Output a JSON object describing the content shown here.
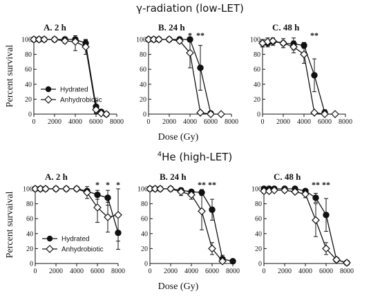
{
  "figure": {
    "sections": [
      {
        "title_main": "γ-radiation (low-LET)",
        "title_sup": "",
        "ylabel": "Percent survival",
        "xlabel": "Dose (Gy)"
      },
      {
        "title_main": "He (high-LET)",
        "title_sup": "4",
        "ylabel": "Percent survaival",
        "xlabel": "Dose (Gy)"
      }
    ],
    "legend": {
      "hydrated": "Hydrated",
      "anhydrobiotic": "Anhydrobiotic"
    }
  },
  "chart_data": [
    {
      "type": "line",
      "title": "A. 2 h",
      "section": "γ-radiation (low-LET)",
      "xlim": [
        0,
        8000
      ],
      "ylim": [
        0,
        100
      ],
      "xticks": [
        "0",
        "2000",
        "4000",
        "6000",
        "8000"
      ],
      "yticks": [
        "0",
        "20",
        "40",
        "60",
        "80",
        "100"
      ],
      "grid": false,
      "legend_position": "bottom-left",
      "significance": [],
      "series": [
        {
          "name": "Hydrated",
          "marker": "filled-circle",
          "x": [
            0,
            500,
            1000,
            2000,
            3000,
            4000,
            5000,
            6000,
            6500,
            7000
          ],
          "y": [
            100,
            100,
            100,
            100,
            100,
            100,
            95,
            10,
            3,
            0
          ],
          "err": [
            0,
            0,
            0,
            0,
            2,
            3,
            4,
            8,
            3,
            0
          ]
        },
        {
          "name": "Anhydrobiotic",
          "marker": "open-diamond",
          "x": [
            0,
            500,
            1000,
            2000,
            3000,
            4000,
            5000,
            6000,
            6500,
            7000
          ],
          "y": [
            100,
            100,
            100,
            100,
            98,
            97,
            90,
            6,
            1,
            0
          ],
          "err": [
            0,
            0,
            0,
            0,
            3,
            12,
            10,
            5,
            2,
            0
          ]
        }
      ]
    },
    {
      "type": "line",
      "title": "B. 24 h",
      "section": "γ-radiation (low-LET)",
      "xlim": [
        0,
        8000
      ],
      "ylim": [
        0,
        100
      ],
      "xticks": [
        "0",
        "2000",
        "4000",
        "6000",
        "8000"
      ],
      "yticks": [
        "0",
        "20",
        "40",
        "60",
        "80",
        "100"
      ],
      "grid": false,
      "significance": [
        {
          "x": 4000,
          "label": "*"
        },
        {
          "x": 5000,
          "label": "**"
        }
      ],
      "series": [
        {
          "name": "Hydrated",
          "marker": "filled-circle",
          "x": [
            0,
            500,
            1000,
            2000,
            3000,
            4000,
            5000,
            6000
          ],
          "y": [
            100,
            100,
            100,
            100,
            100,
            100,
            62,
            1
          ],
          "err": [
            0,
            0,
            0,
            0,
            0,
            3,
            30,
            2
          ]
        },
        {
          "name": "Anhydrobiotic",
          "marker": "open-diamond",
          "x": [
            0,
            500,
            1000,
            2000,
            3000,
            4000,
            5000,
            6000,
            7000
          ],
          "y": [
            100,
            100,
            100,
            100,
            98,
            82,
            2,
            0,
            0
          ],
          "err": [
            0,
            0,
            0,
            0,
            3,
            20,
            3,
            0,
            0
          ]
        }
      ]
    },
    {
      "type": "line",
      "title": "C. 48 h",
      "section": "γ-radiation (low-LET)",
      "xlim": [
        0,
        8000
      ],
      "ylim": [
        0,
        100
      ],
      "xticks": [
        "0",
        "2000",
        "4000",
        "6000",
        "8000"
      ],
      "yticks": [
        "0",
        "20",
        "40",
        "60",
        "80",
        "100"
      ],
      "grid": false,
      "significance": [
        {
          "x": 5000,
          "label": "**"
        }
      ],
      "series": [
        {
          "name": "Hydrated",
          "marker": "filled-circle",
          "x": [
            0,
            500,
            1000,
            2000,
            3000,
            4000,
            5000,
            6000
          ],
          "y": [
            95,
            95,
            97,
            95,
            94,
            92,
            52,
            2
          ],
          "err": [
            5,
            5,
            5,
            6,
            8,
            4,
            22,
            4
          ]
        },
        {
          "name": "Anhydrobiotic",
          "marker": "open-diamond",
          "x": [
            0,
            500,
            1000,
            2000,
            3000,
            4000,
            5000,
            6000,
            7000
          ],
          "y": [
            95,
            97,
            98,
            95,
            90,
            80,
            2,
            0,
            0
          ],
          "err": [
            5,
            5,
            3,
            6,
            8,
            12,
            2,
            0,
            0
          ]
        }
      ]
    },
    {
      "type": "line",
      "title": "A. 2 h",
      "section": "He (high-LET)",
      "xlim": [
        0,
        8000
      ],
      "ylim": [
        0,
        100
      ],
      "xticks": [
        "0",
        "2000",
        "4000",
        "6000",
        "8000"
      ],
      "yticks": [
        "0",
        "20",
        "40",
        "60",
        "80",
        "100"
      ],
      "grid": false,
      "legend_position": "bottom-left",
      "significance": [
        {
          "x": 6000,
          "label": "*"
        },
        {
          "x": 7000,
          "label": "*"
        },
        {
          "x": 8000,
          "label": "*"
        }
      ],
      "series": [
        {
          "name": "Hydrated",
          "marker": "filled-circle",
          "x": [
            0,
            500,
            1000,
            2000,
            3000,
            4000,
            5000,
            6000,
            7000,
            8000
          ],
          "y": [
            100,
            100,
            100,
            100,
            100,
            100,
            97,
            92,
            88,
            41
          ],
          "err": [
            0,
            0,
            0,
            0,
            0,
            0,
            3,
            6,
            10,
            22
          ]
        },
        {
          "name": "Anhydrobiotic",
          "marker": "open-diamond",
          "x": [
            0,
            500,
            1000,
            2000,
            3000,
            4000,
            5000,
            6000,
            7000,
            8000
          ],
          "y": [
            100,
            100,
            100,
            100,
            100,
            100,
            95,
            75,
            62,
            65
          ],
          "err": [
            0,
            0,
            0,
            0,
            0,
            0,
            8,
            20,
            20,
            35
          ]
        }
      ]
    },
    {
      "type": "line",
      "title": "B. 24 h",
      "section": "He (high-LET)",
      "xlim": [
        0,
        8000
      ],
      "ylim": [
        0,
        100
      ],
      "xticks": [
        "0",
        "2000",
        "4000",
        "6000",
        "8000"
      ],
      "yticks": [
        "0",
        "20",
        "40",
        "60",
        "80",
        "100"
      ],
      "grid": false,
      "significance": [
        {
          "x": 5000,
          "label": "**"
        },
        {
          "x": 6000,
          "label": "**"
        }
      ],
      "series": [
        {
          "name": "Hydrated",
          "marker": "filled-circle",
          "x": [
            0,
            500,
            1000,
            2000,
            3000,
            4000,
            5000,
            6000,
            7000,
            8000
          ],
          "y": [
            100,
            100,
            100,
            100,
            98,
            96,
            95,
            72,
            6,
            3
          ],
          "err": [
            0,
            0,
            0,
            0,
            3,
            3,
            4,
            14,
            5,
            2
          ]
        },
        {
          "name": "Anhydrobiotic",
          "marker": "open-diamond",
          "x": [
            0,
            500,
            1000,
            2000,
            3000,
            4000,
            5000,
            6000,
            7000
          ],
          "y": [
            100,
            100,
            100,
            100,
            96,
            92,
            70,
            20,
            3
          ],
          "err": [
            0,
            0,
            0,
            0,
            5,
            6,
            25,
            8,
            3
          ]
        }
      ]
    },
    {
      "type": "line",
      "title": "C. 48 h",
      "section": "He (high-LET)",
      "xlim": [
        0,
        8000
      ],
      "ylim": [
        0,
        100
      ],
      "xticks": [
        "0",
        "2000",
        "4000",
        "6000",
        "8000"
      ],
      "yticks": [
        "0",
        "20",
        "40",
        "60",
        "80",
        "100"
      ],
      "grid": false,
      "significance": [
        {
          "x": 5000,
          "label": "**"
        },
        {
          "x": 6000,
          "label": "**"
        }
      ],
      "series": [
        {
          "name": "Hydrated",
          "marker": "filled-circle",
          "x": [
            0,
            500,
            1000,
            2000,
            3000,
            4000,
            5000,
            6000,
            7000,
            8000
          ],
          "y": [
            100,
            100,
            100,
            100,
            100,
            97,
            88,
            65,
            5,
            1
          ],
          "err": [
            0,
            0,
            0,
            2,
            2,
            3,
            6,
            22,
            3,
            1
          ]
        },
        {
          "name": "Anhydrobiotic",
          "marker": "open-diamond",
          "x": [
            0,
            500,
            1000,
            2000,
            3000,
            4000,
            5000,
            6000,
            7000,
            8000
          ],
          "y": [
            97,
            97,
            98,
            98,
            96,
            93,
            58,
            20,
            5,
            1
          ],
          "err": [
            3,
            3,
            2,
            3,
            3,
            5,
            22,
            8,
            3,
            1
          ]
        }
      ]
    }
  ]
}
